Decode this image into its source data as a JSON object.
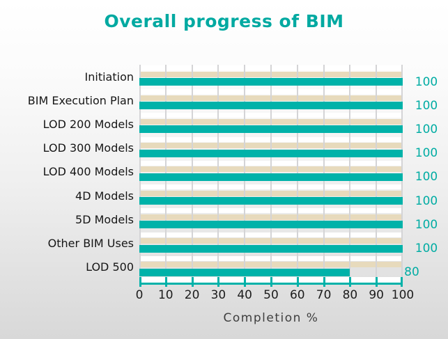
{
  "title": "Overall progress of BIM",
  "chart_data": {
    "type": "bar",
    "orientation": "horizontal",
    "title": "Overall progress of BIM",
    "categories": [
      "Initiation",
      "BIM Execution Plan",
      "LOD 200 Models",
      "LOD 300 Models",
      "LOD 400 Models",
      "4D Models",
      "5D Models",
      "Other BIM Uses",
      "LOD 500"
    ],
    "values": [
      100,
      100,
      100,
      100,
      100,
      100,
      100,
      100,
      80
    ],
    "data_labels": [
      "100",
      "100",
      "100",
      "100",
      "100",
      "100",
      "100",
      "100",
      "80"
    ],
    "xlabel": "Completion %",
    "ylabel": "",
    "xlim": [
      0,
      100
    ],
    "x_ticks": [
      "0",
      "10",
      "20",
      "30",
      "40",
      "50",
      "60",
      "70",
      "80",
      "90",
      "100"
    ],
    "grid": "vertical-major",
    "legend": "none",
    "colors": {
      "bar_teal": "#00B2A9",
      "stripe_tan": "#E7DABC",
      "stripe_white": "#FFFFFF",
      "gridline": "#D4D4D6",
      "title_text": "#00A9A1",
      "value_label_text": "#00ACA3",
      "tick_label_text": "#1C1C1C",
      "axis_title_text": "#3E3E3E"
    }
  }
}
